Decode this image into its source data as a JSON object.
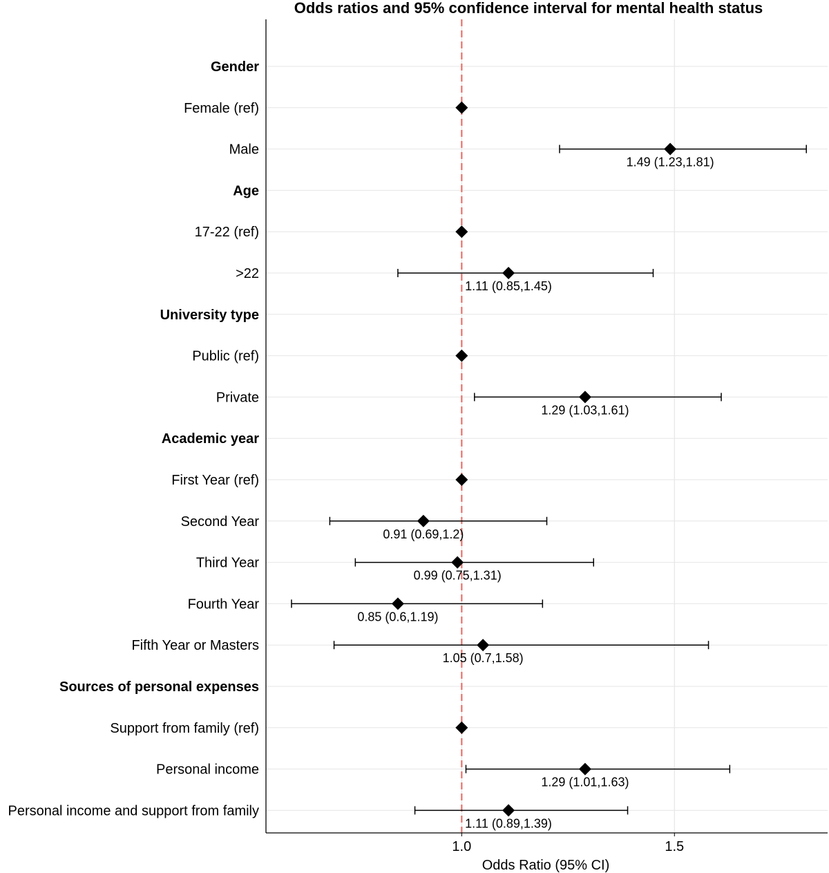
{
  "chart_data": {
    "type": "forest",
    "title": "Odds ratios and 95% confidence interval for mental health status",
    "xlabel": "Odds Ratio (95% CI)",
    "xlim": [
      0.54,
      1.86
    ],
    "xticks": [
      {
        "value": 1.0,
        "label": "1.0"
      },
      {
        "value": 1.5,
        "label": "1.5"
      }
    ],
    "reference_line": {
      "value": 1.0,
      "color": "#e8736b",
      "style": "dashed"
    },
    "grid": true,
    "rows": [
      {
        "label": "Gender",
        "header": true
      },
      {
        "label": "Female (ref)",
        "or": 1.0
      },
      {
        "label": "Male",
        "or": 1.49,
        "lo": 1.23,
        "hi": 1.81,
        "ci_label": "1.49 (1.23,1.81)"
      },
      {
        "label": "Age",
        "header": true
      },
      {
        "label": "17-22 (ref)",
        "or": 1.0
      },
      {
        "label": ">22",
        "or": 1.11,
        "lo": 0.85,
        "hi": 1.45,
        "ci_label": "1.11 (0.85,1.45)"
      },
      {
        "label": "University type",
        "header": true
      },
      {
        "label": "Public (ref)",
        "or": 1.0
      },
      {
        "label": "Private",
        "or": 1.29,
        "lo": 1.03,
        "hi": 1.61,
        "ci_label": "1.29 (1.03,1.61)"
      },
      {
        "label": "Academic year",
        "header": true
      },
      {
        "label": "First Year (ref)",
        "or": 1.0
      },
      {
        "label": "Second Year",
        "or": 0.91,
        "lo": 0.69,
        "hi": 1.2,
        "ci_label": "0.91 (0.69,1.2)"
      },
      {
        "label": "Third Year",
        "or": 0.99,
        "lo": 0.75,
        "hi": 1.31,
        "ci_label": "0.99 (0.75,1.31)"
      },
      {
        "label": "Fourth Year",
        "or": 0.85,
        "lo": 0.6,
        "hi": 1.19,
        "ci_label": "0.85 (0.6,1.19)"
      },
      {
        "label": "Fifth Year or Masters",
        "or": 1.05,
        "lo": 0.7,
        "hi": 1.58,
        "ci_label": "1.05 (0.7,1.58)"
      },
      {
        "label": "Sources of personal expenses",
        "header": true
      },
      {
        "label": "Support from family (ref)",
        "or": 1.0
      },
      {
        "label": "Personal income",
        "or": 1.29,
        "lo": 1.01,
        "hi": 1.63,
        "ci_label": "1.29 (1.01,1.63)"
      },
      {
        "label": "Personal income and support from family",
        "or": 1.11,
        "lo": 0.89,
        "hi": 1.39,
        "ci_label": "1.11 (0.89,1.39)"
      }
    ]
  }
}
